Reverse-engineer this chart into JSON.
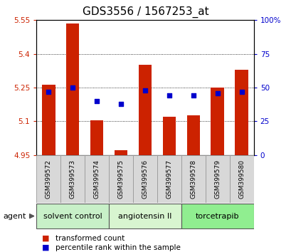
{
  "title": "GDS3556 / 1567253_at",
  "samples": [
    "GSM399572",
    "GSM399573",
    "GSM399574",
    "GSM399575",
    "GSM399576",
    "GSM399577",
    "GSM399578",
    "GSM399579",
    "GSM399580"
  ],
  "transformed_counts": [
    5.262,
    5.535,
    5.105,
    4.97,
    5.35,
    5.12,
    5.125,
    5.25,
    5.33
  ],
  "percentile_ranks": [
    47,
    50,
    40,
    38,
    48,
    44,
    44,
    46,
    47
  ],
  "baseline": 4.95,
  "ylim_left": [
    4.95,
    5.55
  ],
  "ylim_right": [
    0,
    100
  ],
  "yticks_left": [
    4.95,
    5.1,
    5.25,
    5.4,
    5.55
  ],
  "yticks_right": [
    0,
    25,
    50,
    75,
    100
  ],
  "ytick_labels_right": [
    "0",
    "25",
    "50",
    "75",
    "100%"
  ],
  "bar_color": "#cc2200",
  "dot_color": "#0000cc",
  "groups": [
    {
      "label": "solvent control",
      "indices": [
        0,
        1,
        2
      ],
      "color": "#c8f0c8"
    },
    {
      "label": "angiotensin II",
      "indices": [
        3,
        4,
        5
      ],
      "color": "#d8f5d0"
    },
    {
      "label": "torcetrapib",
      "indices": [
        6,
        7,
        8
      ],
      "color": "#90ee90"
    }
  ],
  "legend_labels": [
    "transformed count",
    "percentile rank within the sample"
  ],
  "legend_colors": [
    "#cc2200",
    "#0000cc"
  ],
  "agent_label": "agent",
  "bar_width": 0.55,
  "grid_color": "#000000",
  "tick_label_color_left": "#cc2200",
  "tick_label_color_right": "#0000cc",
  "title_fontsize": 11,
  "tick_fontsize": 7.5,
  "sample_fontsize": 6.5,
  "group_fontsize": 8,
  "legend_fontsize": 7.5
}
